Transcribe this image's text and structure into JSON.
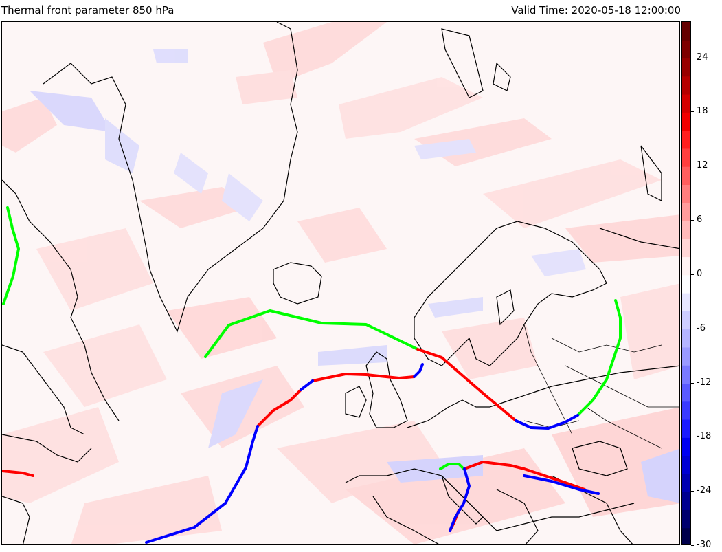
{
  "header": {
    "title": "Thermal front parameter 850 hPa",
    "valid_time": "Valid Time: 2020-05-18 12:00:00"
  },
  "colorbar": {
    "min": -30,
    "max": 28,
    "ticks": [
      "24",
      "18",
      "12",
      "6",
      "0",
      "-6",
      "-12",
      "-18",
      "-24",
      "-30"
    ],
    "tick_values": [
      24,
      18,
      12,
      6,
      0,
      -6,
      -12,
      -18,
      -24,
      -30
    ],
    "levels": [
      {
        "from": -30,
        "to": -28,
        "color": "#00004c"
      },
      {
        "from": -28,
        "to": -26,
        "color": "#00006e"
      },
      {
        "from": -26,
        "to": -24,
        "color": "#000090"
      },
      {
        "from": -24,
        "to": -22,
        "color": "#0000b2"
      },
      {
        "from": -22,
        "to": -20,
        "color": "#0000d4"
      },
      {
        "from": -20,
        "to": -18,
        "color": "#0000f2"
      },
      {
        "from": -18,
        "to": -16,
        "color": "#1a1aff"
      },
      {
        "from": -16,
        "to": -14,
        "color": "#3a3aff"
      },
      {
        "from": -14,
        "to": -12,
        "color": "#5a5aff"
      },
      {
        "from": -12,
        "to": -10,
        "color": "#7a7aff"
      },
      {
        "from": -10,
        "to": -8,
        "color": "#9a9aff"
      },
      {
        "from": -8,
        "to": -6,
        "color": "#b4b4ff"
      },
      {
        "from": -6,
        "to": -4,
        "color": "#cdcdff"
      },
      {
        "from": -4,
        "to": -2,
        "color": "#e6e6ff"
      },
      {
        "from": -2,
        "to": 0,
        "color": "#fdfdff"
      },
      {
        "from": 0,
        "to": 2,
        "color": "#fff3f3"
      },
      {
        "from": 2,
        "to": 4,
        "color": "#ffd6d6"
      },
      {
        "from": 4,
        "to": 6,
        "color": "#ffbaba"
      },
      {
        "from": 6,
        "to": 8,
        "color": "#ff9c9c"
      },
      {
        "from": 8,
        "to": 10,
        "color": "#ff7e7e"
      },
      {
        "from": 10,
        "to": 12,
        "color": "#ff5e5e"
      },
      {
        "from": 12,
        "to": 14,
        "color": "#ff3e3e"
      },
      {
        "from": 14,
        "to": 16,
        "color": "#ff1e1e"
      },
      {
        "from": 16,
        "to": 18,
        "color": "#f20000"
      },
      {
        "from": 18,
        "to": 20,
        "color": "#d40000"
      },
      {
        "from": 20,
        "to": 22,
        "color": "#b60000"
      },
      {
        "from": 22,
        "to": 24,
        "color": "#980000"
      },
      {
        "from": 24,
        "to": 26,
        "color": "#7e0000"
      },
      {
        "from": 26,
        "to": 28,
        "color": "#640000"
      }
    ]
  },
  "map": {
    "front_colors": {
      "warm": "#ff0000",
      "cold": "#0000ff",
      "stationary": "#00ff00"
    },
    "field_colors": {
      "positive": "#ffc8c8",
      "negative": "#c8c8ff",
      "coastline": "#000000"
    }
  }
}
